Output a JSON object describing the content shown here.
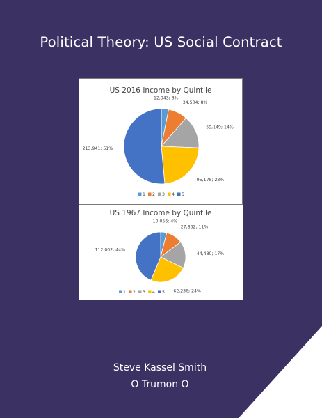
{
  "cover": {
    "title": "Political Theory: US Social Contract",
    "author": "Steve Kassel Smith",
    "publisher": "O Trumon O",
    "colors": {
      "background": "#3b3263",
      "corner": "#ffffff"
    }
  },
  "chart_data": [
    {
      "type": "pie",
      "title": "US 2016 Income by Quintile",
      "categories": [
        "1",
        "2",
        "3",
        "4",
        "5"
      ],
      "values": [
        12943,
        34504,
        59149,
        95178,
        213941
      ],
      "labels": [
        "12,943; 3%",
        "34,504; 8%",
        "59,149; 14%",
        "95,178; 23%",
        "213,941; 51%"
      ],
      "colors": [
        "#5b9bd5",
        "#ed7d31",
        "#a5a5a5",
        "#ffc000",
        "#4472c4"
      ],
      "legend": "bottom"
    },
    {
      "type": "pie",
      "title": "US 1967 Income by Quintile",
      "categories": [
        "1",
        "2",
        "3",
        "4",
        "5"
      ],
      "values": [
        10056,
        27862,
        44480,
        62236,
        112002
      ],
      "labels": [
        "10,056; 4%",
        "27,862; 11%",
        "44,480; 17%",
        "62,236; 24%",
        "112,002; 44%"
      ],
      "colors": [
        "#5b9bd5",
        "#ed7d31",
        "#a5a5a5",
        "#ffc000",
        "#4472c4"
      ],
      "legend": "bottom"
    }
  ]
}
